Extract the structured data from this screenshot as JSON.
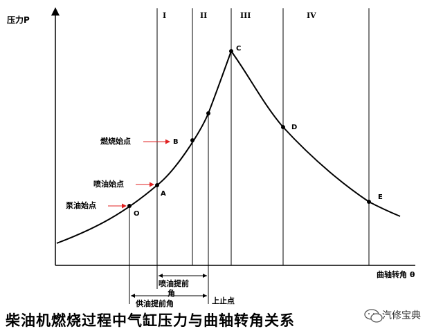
{
  "axes": {
    "y_label": "压力P",
    "x_label": "曲轴转角 θ"
  },
  "regions": [
    "I",
    "II",
    "III",
    "IV"
  ],
  "points": {
    "O": "O",
    "A": "A",
    "B": "B",
    "C": "C",
    "D": "D",
    "E": "E"
  },
  "annotations": {
    "pump_start": "泵油始点",
    "inject_start": "喷油始点",
    "combust_start": "燃烧始点",
    "inject_advance_line1": "喷油提前",
    "inject_advance_line2": "角",
    "supply_advance": "供油提前角",
    "tdc": "上止点"
  },
  "caption": "柴油机燃烧过程中气缸压力与曲轴转角关系",
  "watermark": "汽修宝典",
  "colors": {
    "ink": "#000000",
    "arrow": "#e02020"
  }
}
